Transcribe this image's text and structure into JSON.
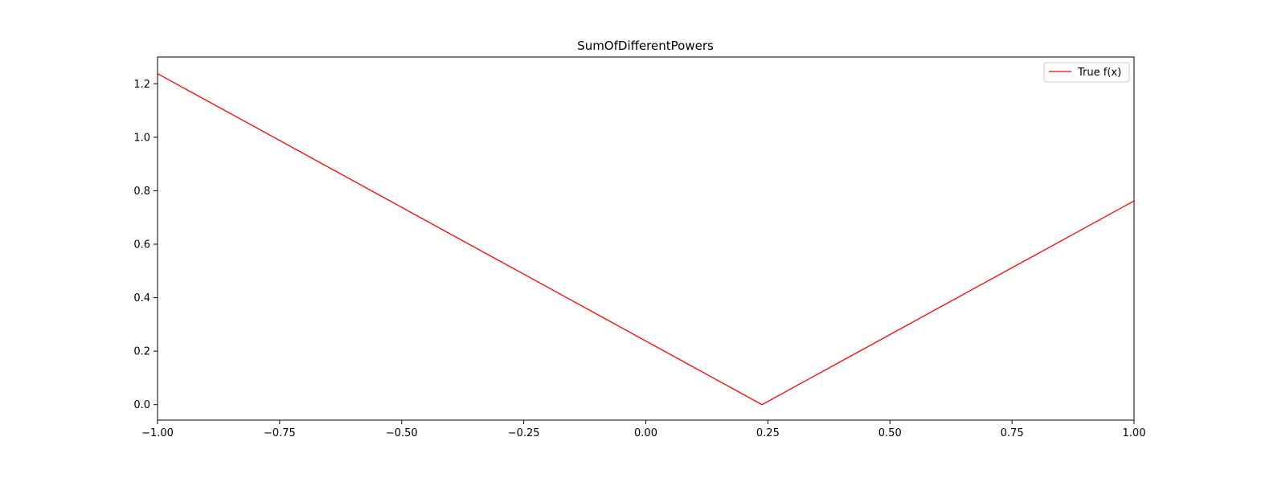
{
  "chart_data": {
    "type": "line",
    "title": "SumOfDifferentPowers",
    "xlabel": "",
    "ylabel": "",
    "xlim": [
      -1.0,
      1.0
    ],
    "ylim": [
      -0.058,
      1.3
    ],
    "x_ticks": [
      -1.0,
      -0.75,
      -0.5,
      -0.25,
      0.0,
      0.25,
      0.5,
      0.75,
      1.0
    ],
    "x_tick_labels": [
      "−1.00",
      "−0.75",
      "−0.50",
      "−0.25",
      "0.00",
      "0.25",
      "0.50",
      "0.75",
      "1.00"
    ],
    "y_ticks": [
      0.0,
      0.2,
      0.4,
      0.6,
      0.8,
      1.0,
      1.2
    ],
    "y_tick_labels": [
      "0.0",
      "0.2",
      "0.4",
      "0.6",
      "0.8",
      "1.0",
      "1.2"
    ],
    "grid": false,
    "legend_position": "top-right",
    "series": [
      {
        "name": "True f(x)",
        "color": "#ff0000",
        "x": [
          -1.0,
          0.238,
          1.0
        ],
        "y": [
          1.238,
          0.0,
          0.762
        ]
      }
    ]
  }
}
